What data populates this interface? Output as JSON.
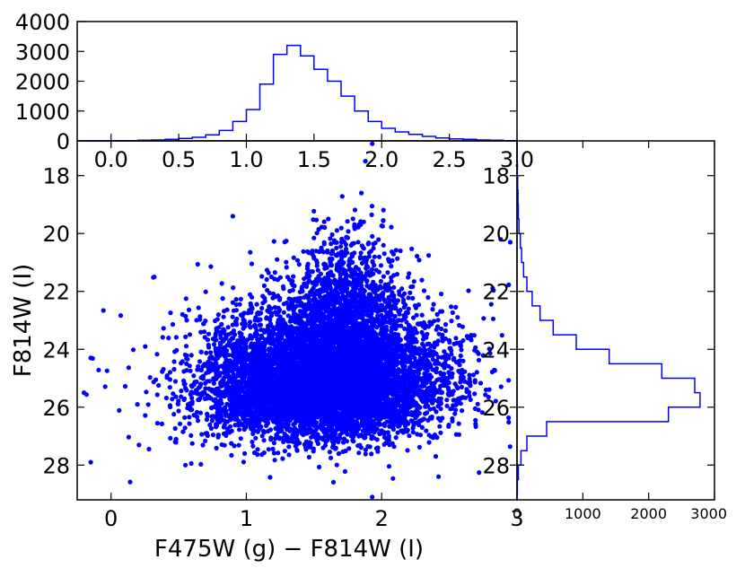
{
  "chart_data": [
    {
      "type": "scatter",
      "panel": "main",
      "xlabel": "F475W (g) − F814W (I)",
      "ylabel": "F814W (I)",
      "xlim": [
        -0.25,
        3.0
      ],
      "ylim": [
        29.2,
        16.8
      ],
      "y_inverted": true,
      "xticks": [
        "0",
        "1",
        "2",
        "3"
      ],
      "yticks": [
        "18",
        "20",
        "22",
        "24",
        "26",
        "28"
      ],
      "marker_color": "#0000ff",
      "approx_points": 9000,
      "core_density": {
        "color_center": 1.55,
        "mag_center": 25.3
      },
      "notable_points": [
        {
          "x": 1.93,
          "y": 16.9
        },
        {
          "x": 1.88,
          "y": 17.5
        },
        {
          "x": 1.85,
          "y": 18.6
        },
        {
          "x": 0.32,
          "y": 21.5
        },
        {
          "x": 0.9,
          "y": 19.4
        },
        {
          "x": -0.15,
          "y": 24.3
        },
        {
          "x": -0.2,
          "y": 25.5
        },
        {
          "x": -0.15,
          "y": 27.9
        },
        {
          "x": 0.55,
          "y": 28.0
        },
        {
          "x": 2.4,
          "y": 27.7
        },
        {
          "x": 2.42,
          "y": 28.4
        },
        {
          "x": 1.93,
          "y": 29.1
        },
        {
          "x": 2.88,
          "y": 20.2
        },
        {
          "x": 2.95,
          "y": 20.3
        }
      ]
    },
    {
      "type": "histogram",
      "panel": "top",
      "orientation": "vertical",
      "xlim": [
        -0.25,
        3.0
      ],
      "ylim": [
        0,
        4000
      ],
      "xticks": [
        "0.0",
        "0.5",
        "1.0",
        "1.5",
        "2.0",
        "2.5",
        "3.0"
      ],
      "yticks": [
        "0",
        "1000",
        "2000",
        "3000",
        "4000"
      ],
      "line_color": "#0000ff",
      "bin_edges": [
        -0.2,
        -0.1,
        0.0,
        0.1,
        0.2,
        0.3,
        0.4,
        0.5,
        0.6,
        0.7,
        0.8,
        0.9,
        1.0,
        1.1,
        1.2,
        1.3,
        1.4,
        1.5,
        1.6,
        1.7,
        1.8,
        1.9,
        2.0,
        2.1,
        2.2,
        2.3,
        2.4,
        2.5,
        2.6,
        2.7,
        2.8,
        2.9,
        3.0
      ],
      "counts": [
        0,
        0,
        5,
        10,
        20,
        30,
        50,
        80,
        120,
        200,
        350,
        650,
        1050,
        1900,
        2900,
        3200,
        2850,
        2400,
        2000,
        1500,
        1000,
        650,
        420,
        300,
        220,
        150,
        100,
        70,
        50,
        30,
        20,
        10
      ]
    },
    {
      "type": "histogram",
      "panel": "right",
      "orientation": "horizontal",
      "xlim": [
        0,
        3000
      ],
      "ylim": [
        29.2,
        16.8
      ],
      "xticks": [
        "0",
        "1000",
        "2000",
        "3000"
      ],
      "yticks": [
        "18",
        "20",
        "22",
        "24",
        "26",
        "28"
      ],
      "line_color": "#0000ff",
      "bin_edges": [
        17.0,
        17.5,
        18.0,
        18.5,
        19.0,
        19.5,
        20.0,
        20.5,
        21.0,
        21.5,
        22.0,
        22.5,
        23.0,
        23.5,
        24.0,
        24.5,
        25.0,
        25.5,
        26.0,
        26.5,
        27.0,
        27.5,
        28.0,
        28.5,
        29.0
      ],
      "counts": [
        2,
        5,
        10,
        15,
        20,
        30,
        50,
        70,
        100,
        150,
        230,
        350,
        550,
        900,
        1400,
        2200,
        2700,
        2780,
        2300,
        450,
        150,
        60,
        20,
        5
      ]
    }
  ]
}
